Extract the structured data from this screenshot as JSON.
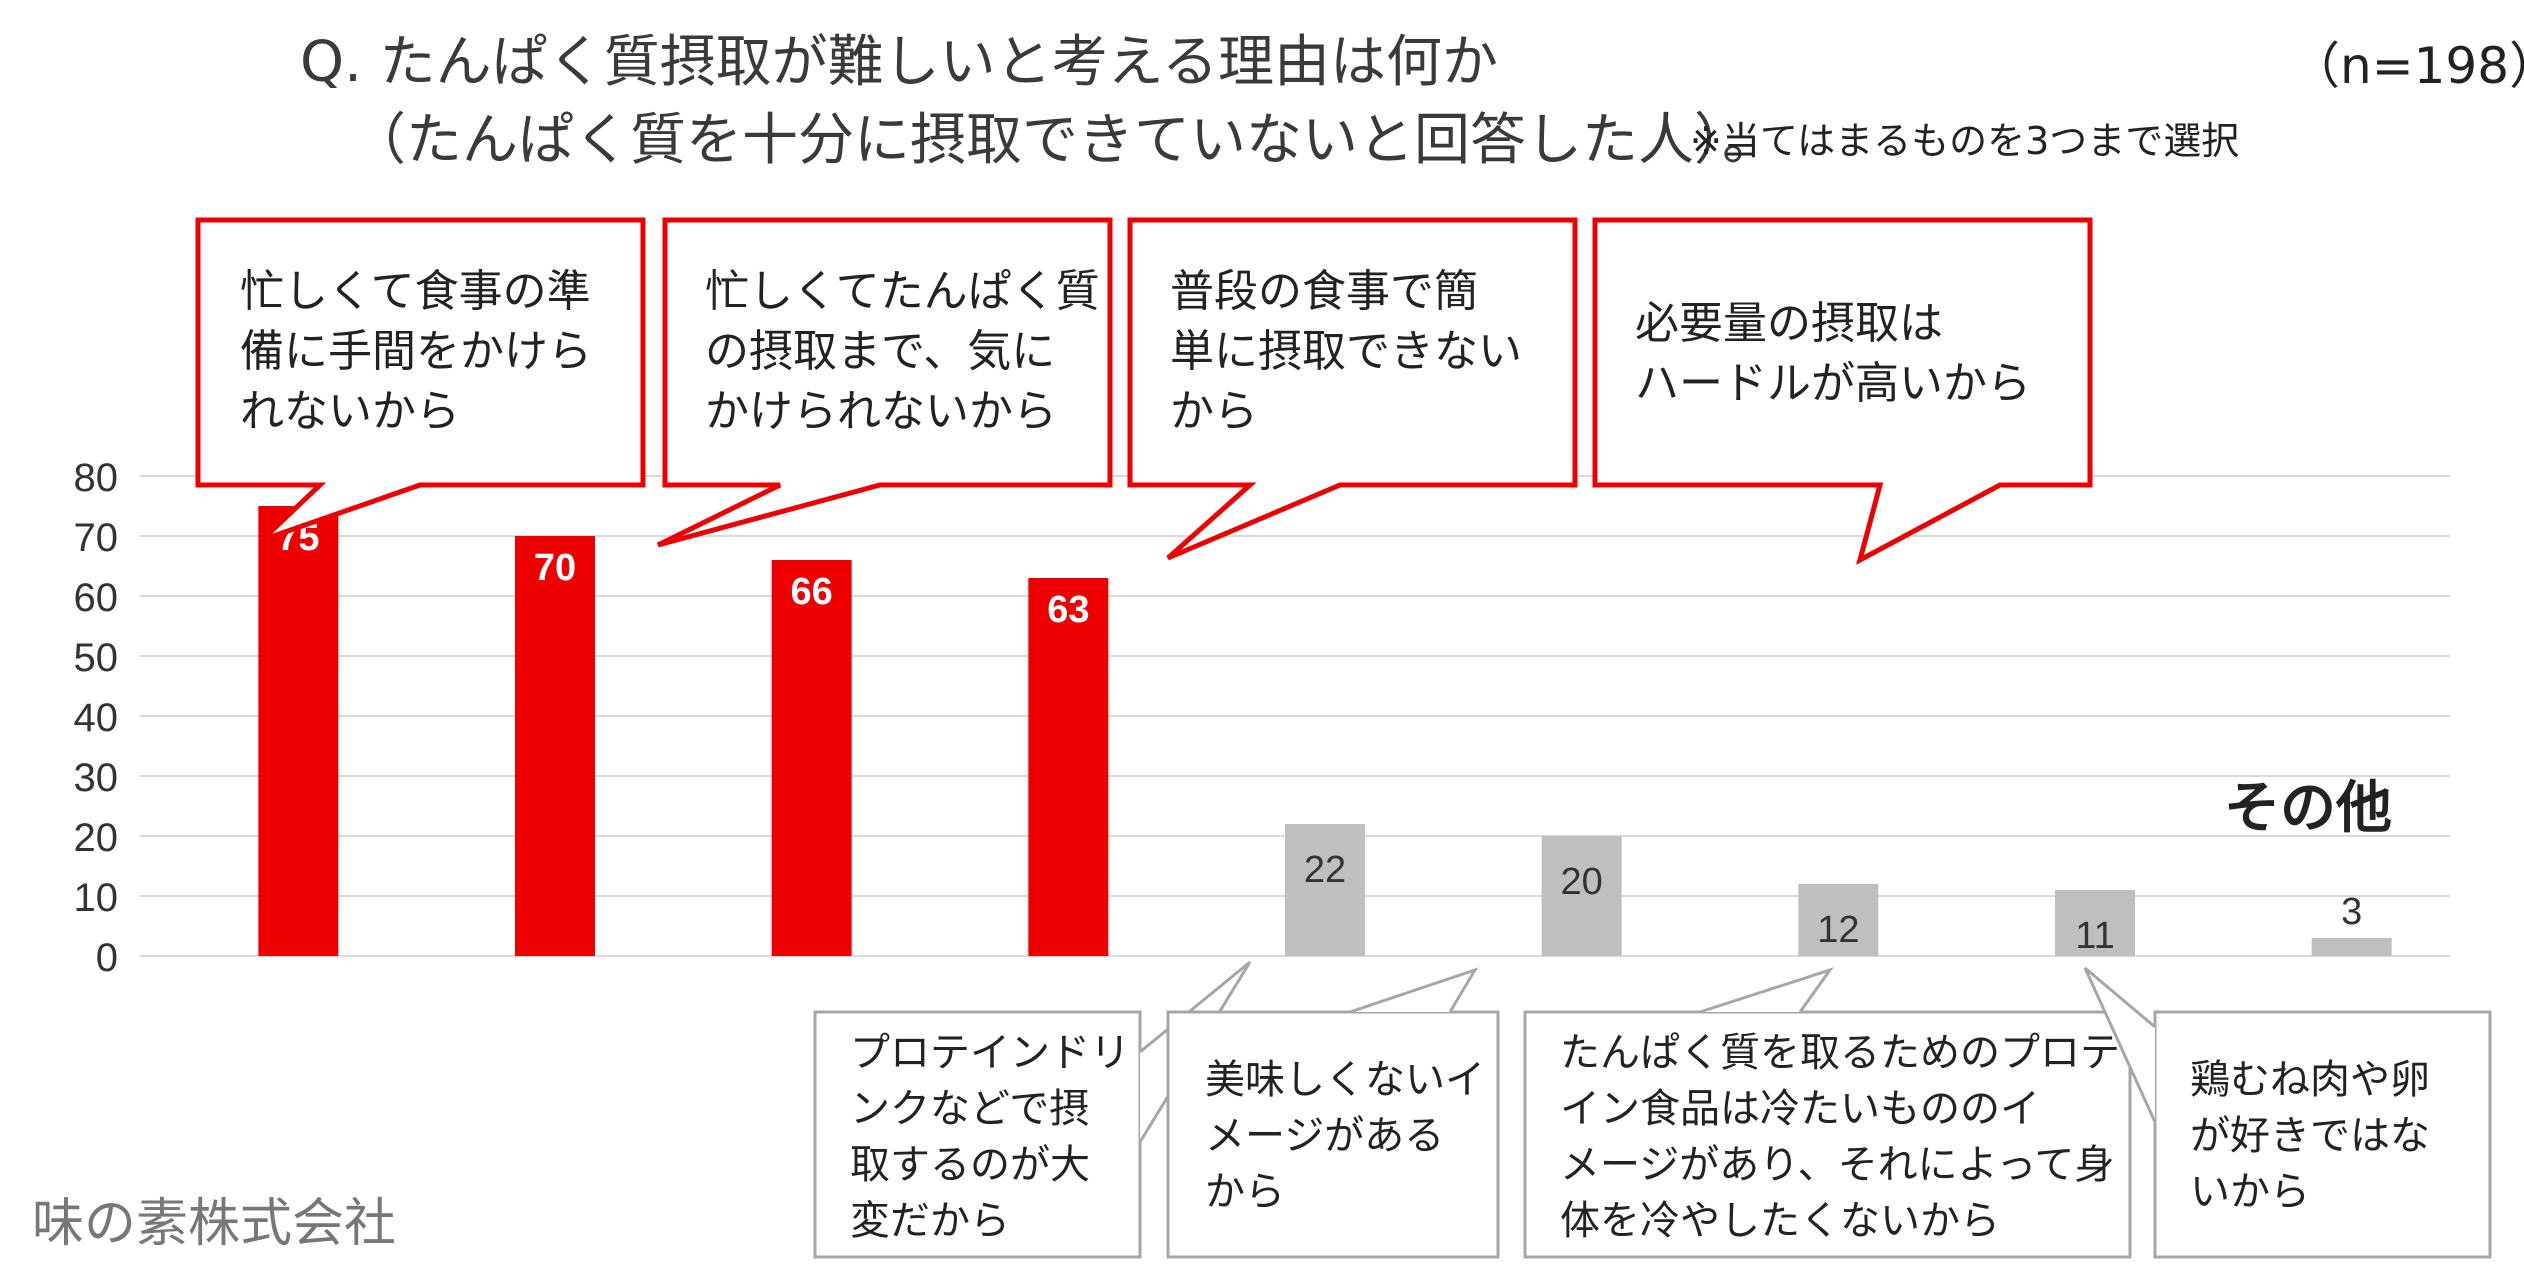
{
  "header": {
    "title_line1": "Q. たんぱく質摂取が難しいと考える理由は何か",
    "title_line2": "（たんぱく質を十分に摂取できていないと回答した人）。",
    "note": "※当てはまるものを3つまで選択",
    "sample": "（n=198）"
  },
  "footer": {
    "company": "味の素株式会社"
  },
  "label_other": "その他",
  "chart_data": {
    "type": "bar",
    "categories": [
      "忙しくて食事の準備に手間をかけられないから",
      "忙しくてたんぱく質の摂取まで、気にかけられないから",
      "普段の食事で簡単に摂取できないから",
      "必要量の摂取はハードルが高いから",
      "プロテインドリンクなどで摂取するのが大変だから",
      "美味しくないイメージがあるから",
      "たんぱく質を取るためのプロテイン食品は冷たいもののイメージがあり、それによって身体を冷やしたくないから",
      "鶏むね肉や卵が好きではないから",
      "その他"
    ],
    "values": [
      75,
      70,
      66,
      63,
      22,
      20,
      12,
      11,
      3
    ],
    "ylim": [
      0,
      80
    ],
    "yticks": [
      0,
      10,
      20,
      30,
      40,
      50,
      60,
      70,
      80
    ],
    "grid": true,
    "colors": {
      "highlight": "#ee0000",
      "other": "#bfbfbf",
      "grid": "#d9d9d9",
      "callout_red_border": "#ee0000",
      "callout_grey_border": "#a6a6a6"
    },
    "highlight_count": 4
  },
  "callouts": {
    "c1": "忙しくて食事の準\n備に手間をかけら\nれないから",
    "c2": "忙しくてたんぱく質\nの摂取まで、気に\nかけられないから",
    "c3": "普段の食事で簡\n単に摂取できない\nから",
    "c4": "必要量の摂取は\nハードルが高いから",
    "c5": "プロテインドリ\nンクなどで摂\n取するのが大\n変だから",
    "c6": "美味しくないイ\nメージがある\nから",
    "c7": "たんぱく質を取るためのプロテ\nイン食品は冷たいもののイ\nメージがあり、それによって身\n体を冷やしたくないから",
    "c8": "鶏むね肉や卵\nが好きではな\nいから"
  }
}
